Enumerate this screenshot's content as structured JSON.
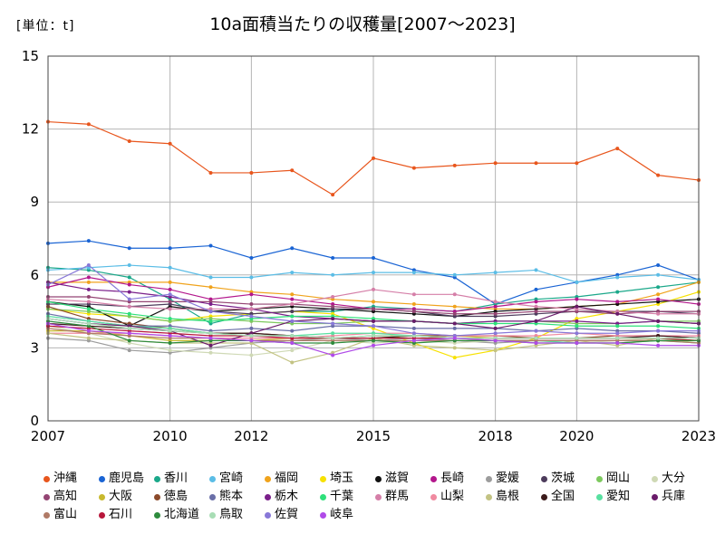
{
  "header": {
    "unit_label": "[単位：t]",
    "title": "10a面積当たりの収穫量[2007～2023]"
  },
  "chart_data": {
    "type": "line",
    "title": "10a面積当たりの収穫量[2007～2023]",
    "unit": "[単位：t]",
    "xlabel": "",
    "ylabel": "",
    "x": [
      2007,
      2008,
      2009,
      2010,
      2011,
      2012,
      2013,
      2014,
      2015,
      2016,
      2017,
      2018,
      2019,
      2020,
      2021,
      2022,
      2023
    ],
    "x_ticks": [
      "2007",
      "2010",
      "2012",
      "2015",
      "2018",
      "2020",
      "2023"
    ],
    "xlim": [
      2007,
      2023
    ],
    "ylim": [
      0,
      15
    ],
    "y_ticks": [
      "0",
      "3",
      "6",
      "9",
      "12",
      "15"
    ],
    "grid": true,
    "legend_position": "bottom",
    "series": [
      {
        "name": "沖縄",
        "color": "#e8561d",
        "values": [
          12.3,
          12.2,
          11.5,
          11.4,
          10.2,
          10.2,
          10.3,
          9.3,
          10.8,
          10.4,
          10.5,
          10.6,
          10.6,
          10.6,
          11.2,
          10.1,
          9.9
        ]
      },
      {
        "name": "鹿児島",
        "color": "#1a64d4",
        "values": [
          7.3,
          7.4,
          7.1,
          7.1,
          7.2,
          6.7,
          7.1,
          6.7,
          6.7,
          6.2,
          5.9,
          4.8,
          5.4,
          5.7,
          6.0,
          6.4,
          5.8
        ]
      },
      {
        "name": "香川",
        "color": "#1ba88a",
        "values": [
          6.3,
          6.2,
          5.9,
          5.0,
          4.0,
          4.4,
          4.5,
          4.5,
          4.7,
          4.6,
          4.5,
          4.8,
          5.0,
          5.1,
          5.3,
          5.5,
          5.7
        ]
      },
      {
        "name": "宮崎",
        "color": "#5bbde6",
        "values": [
          6.2,
          6.3,
          6.4,
          6.3,
          5.9,
          5.9,
          6.1,
          6.0,
          6.1,
          6.1,
          6.0,
          6.1,
          6.2,
          5.7,
          5.9,
          6.0,
          5.8
        ]
      },
      {
        "name": "福岡",
        "color": "#f0a31c",
        "values": [
          5.7,
          5.7,
          5.7,
          5.7,
          5.5,
          5.3,
          5.2,
          5.0,
          4.9,
          4.8,
          4.7,
          4.6,
          4.6,
          4.7,
          4.8,
          5.2,
          5.7
        ]
      },
      {
        "name": "埼玉",
        "color": "#f7e100",
        "values": [
          4.6,
          4.4,
          4.3,
          4.1,
          4.3,
          4.4,
          4.5,
          4.4,
          3.8,
          3.2,
          2.6,
          2.9,
          3.4,
          4.2,
          4.5,
          4.8,
          5.3
        ]
      },
      {
        "name": "滋賀",
        "color": "#111111",
        "values": [
          4.9,
          4.7,
          3.9,
          4.7,
          4.5,
          4.6,
          4.7,
          4.6,
          4.5,
          4.4,
          4.3,
          4.5,
          4.6,
          4.7,
          4.8,
          4.9,
          5.0
        ]
      },
      {
        "name": "長崎",
        "color": "#b3178c",
        "values": [
          5.5,
          5.9,
          5.6,
          5.4,
          5.0,
          5.2,
          5.0,
          4.8,
          4.6,
          4.6,
          4.5,
          4.7,
          4.9,
          5.0,
          4.9,
          5.0,
          4.8
        ]
      },
      {
        "name": "愛媛",
        "color": "#9c9c9c",
        "values": [
          3.4,
          3.3,
          2.9,
          2.8,
          3.0,
          3.2,
          3.3,
          3.4,
          3.3,
          3.4,
          3.3,
          3.2,
          3.3,
          3.3,
          3.3,
          3.3,
          3.3
        ]
      },
      {
        "name": "茨城",
        "color": "#4d3c5c",
        "values": [
          4.8,
          4.8,
          4.7,
          4.8,
          4.5,
          4.4,
          4.5,
          4.6,
          4.6,
          4.5,
          4.3,
          4.3,
          4.4,
          4.5,
          4.5,
          4.5,
          4.4
        ]
      },
      {
        "name": "岡山",
        "color": "#7dc95e",
        "values": [
          4.6,
          4.5,
          4.3,
          4.1,
          4.2,
          4.1,
          4.0,
          4.0,
          4.1,
          4.1,
          4.0,
          4.1,
          4.1,
          4.0,
          4.0,
          4.1,
          4.1
        ]
      },
      {
        "name": "大分",
        "color": "#cfd9b5",
        "values": [
          3.9,
          3.6,
          3.2,
          2.9,
          2.8,
          2.7,
          2.9,
          3.3,
          3.2,
          3.3,
          3.2,
          3.3,
          3.3,
          3.2,
          3.3,
          3.4,
          3.3
        ]
      },
      {
        "name": "高知",
        "color": "#944573",
        "values": [
          5.1,
          5.1,
          4.9,
          4.9,
          4.9,
          4.8,
          4.8,
          4.7,
          4.6,
          4.5,
          4.4,
          4.4,
          4.5,
          4.5,
          4.4,
          4.5,
          4.5
        ]
      },
      {
        "name": "大阪",
        "color": "#c8b92e",
        "values": [
          3.7,
          3.7,
          3.5,
          3.3,
          3.3,
          3.3,
          3.4,
          3.4,
          3.4,
          3.5,
          3.5,
          3.4,
          3.4,
          3.4,
          3.4,
          3.4,
          3.3
        ]
      },
      {
        "name": "徳島",
        "color": "#8b4a2b",
        "values": [
          4.7,
          4.2,
          4.0,
          3.8,
          3.6,
          3.6,
          3.5,
          3.4,
          3.5,
          3.5,
          3.5,
          3.5,
          3.4,
          3.4,
          3.5,
          3.5,
          3.4
        ]
      },
      {
        "name": "熊本",
        "color": "#6a6fa8",
        "values": [
          4.4,
          4.1,
          3.9,
          3.9,
          3.7,
          3.8,
          3.7,
          3.9,
          3.9,
          3.8,
          3.8,
          3.8,
          3.7,
          3.8,
          3.7,
          3.7,
          3.6
        ]
      },
      {
        "name": "栃木",
        "color": "#7a1f8a",
        "values": [
          5.7,
          5.4,
          5.3,
          5.1,
          4.8,
          4.6,
          4.3,
          4.2,
          4.1,
          4.1,
          4.0,
          4.1,
          4.1,
          4.1,
          4.0,
          4.1,
          4.0
        ]
      },
      {
        "name": "千葉",
        "color": "#2ee07a",
        "values": [
          4.9,
          4.6,
          4.4,
          4.2,
          4.1,
          4.2,
          4.3,
          4.3,
          4.2,
          4.1,
          4.0,
          4.0,
          4.0,
          3.9,
          3.9,
          3.9,
          3.8
        ]
      },
      {
        "name": "群馬",
        "color": "#d57fa8",
        "values": [
          5.0,
          4.9,
          4.7,
          4.6,
          4.6,
          4.6,
          4.8,
          5.1,
          5.4,
          5.2,
          5.2,
          4.9,
          4.7,
          4.6,
          4.5,
          4.4,
          4.4
        ]
      },
      {
        "name": "山梨",
        "color": "#f08aa0",
        "values": [
          3.6,
          3.6,
          3.6,
          3.5,
          3.4,
          3.4,
          3.4,
          3.5,
          3.6,
          3.6,
          3.5,
          3.5,
          3.5,
          3.6,
          3.5,
          3.5,
          3.5
        ]
      },
      {
        "name": "島根",
        "color": "#c3c383",
        "values": [
          3.6,
          3.4,
          3.3,
          3.2,
          3.2,
          3.2,
          2.4,
          2.8,
          3.4,
          3.1,
          3.0,
          2.9,
          3.1,
          3.3,
          3.1,
          3.4,
          3.2
        ]
      },
      {
        "name": "全国",
        "color": "#3b1a1a",
        "values": [
          4.0,
          3.9,
          3.8,
          3.7,
          3.6,
          3.6,
          3.5,
          3.4,
          3.4,
          3.5,
          3.4,
          3.4,
          3.4,
          3.4,
          3.4,
          3.5,
          3.4
        ]
      },
      {
        "name": "愛知",
        "color": "#58e0a0",
        "values": [
          4.3,
          4.1,
          3.9,
          3.8,
          3.6,
          3.5,
          3.5,
          3.6,
          3.6,
          3.5,
          3.4,
          3.3,
          3.3,
          3.2,
          3.2,
          3.3,
          3.2
        ]
      },
      {
        "name": "兵庫",
        "color": "#6a1c6a",
        "values": [
          4.2,
          4.0,
          3.9,
          3.7,
          3.1,
          3.6,
          4.1,
          4.2,
          4.1,
          4.1,
          4.0,
          3.8,
          4.1,
          4.7,
          4.4,
          4.1,
          4.0
        ]
      },
      {
        "name": "富山",
        "color": "#b07a66",
        "values": [
          3.8,
          3.6,
          3.5,
          3.4,
          3.4,
          3.3,
          3.3,
          3.3,
          3.3,
          3.3,
          3.3,
          3.3,
          3.3,
          3.3,
          3.3,
          3.3,
          3.2
        ]
      },
      {
        "name": "石川",
        "color": "#b8173b",
        "values": [
          3.9,
          3.8,
          3.7,
          3.6,
          3.5,
          3.5,
          3.4,
          3.4,
          3.4,
          3.4,
          3.4,
          3.4,
          3.4,
          3.4,
          3.4,
          3.4,
          3.3
        ]
      },
      {
        "name": "北海道",
        "color": "#2e8b3d",
        "values": [
          4.1,
          3.9,
          3.3,
          3.2,
          3.3,
          3.3,
          3.2,
          3.2,
          3.3,
          3.2,
          3.3,
          3.3,
          3.2,
          3.2,
          3.2,
          3.3,
          3.3
        ]
      },
      {
        "name": "鳥取",
        "color": "#a8ddb5",
        "values": [
          4.2,
          4.0,
          3.8,
          3.7,
          3.6,
          3.5,
          3.5,
          3.4,
          3.5,
          3.5,
          3.4,
          3.4,
          3.4,
          3.4,
          3.4,
          3.4,
          3.4
        ]
      },
      {
        "name": "佐賀",
        "color": "#8878d8",
        "values": [
          5.6,
          6.4,
          5.0,
          5.2,
          4.5,
          4.3,
          4.1,
          4.0,
          3.9,
          3.6,
          3.5,
          3.6,
          3.7,
          3.6,
          3.6,
          3.7,
          3.7
        ]
      },
      {
        "name": "岐阜",
        "color": "#b04ae8",
        "values": [
          4.0,
          3.7,
          3.6,
          3.5,
          3.4,
          3.3,
          3.2,
          2.7,
          3.1,
          3.3,
          3.4,
          3.3,
          3.2,
          3.2,
          3.2,
          3.1,
          3.1
        ]
      }
    ]
  }
}
